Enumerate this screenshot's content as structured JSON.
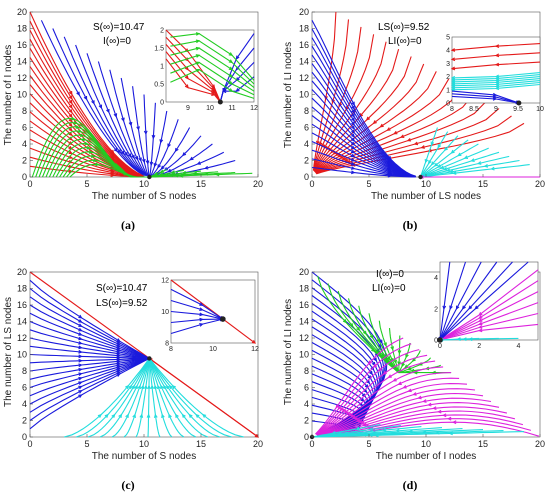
{
  "colors": {
    "red": "#e41a1a",
    "blue": "#1a1adc",
    "green": "#22cc22",
    "cyan": "#22dddd",
    "magenta": "#dd22dd",
    "endpoint": "#222222"
  },
  "chart_data": [
    {
      "id": "a",
      "panel_label": "(a)",
      "type": "line",
      "xlabel": "The number of S nodes",
      "ylabel": "The number of I nodes",
      "xlim": [
        0,
        20
      ],
      "ylim": [
        0,
        20
      ],
      "xticks": [
        0,
        5,
        10,
        15,
        20
      ],
      "yticks": [
        0,
        2,
        4,
        6,
        8,
        10,
        12,
        14,
        16,
        18,
        20
      ],
      "annotations": [
        "S(∞)=10.47",
        "I(∞)=0"
      ],
      "equilibrium": {
        "x": 10.47,
        "y": 0
      },
      "series_colors": [
        "red",
        "blue",
        "green"
      ],
      "inset": {
        "xlim": [
          8,
          12
        ],
        "ylim": [
          0,
          2
        ],
        "xticks": [
          9,
          10,
          11,
          12
        ],
        "yticks": [
          0,
          0.5,
          1,
          1.5,
          2
        ],
        "x_tick_labels": [
          "9",
          "10",
          "11",
          "12"
        ],
        "y_tick_labels": [
          "0",
          "0.5",
          "1",
          "1.5",
          "2"
        ]
      }
    },
    {
      "id": "b",
      "panel_label": "(b)",
      "type": "line",
      "xlabel": "The number of LS nodes",
      "ylabel": "The number of LI nodes",
      "xlim": [
        0,
        20
      ],
      "ylim": [
        0,
        20
      ],
      "xticks": [
        0,
        5,
        10,
        15,
        20
      ],
      "yticks": [
        0,
        2,
        4,
        6,
        8,
        10,
        12,
        14,
        16,
        18,
        20
      ],
      "annotations": [
        "LS(∞)=9.52",
        "LI(∞)=0"
      ],
      "equilibrium": {
        "x": 9.52,
        "y": 0
      },
      "series_colors": [
        "red",
        "blue",
        "cyan"
      ],
      "inset": {
        "xlim": [
          8,
          10
        ],
        "ylim": [
          0,
          5
        ],
        "xticks": [
          8,
          8.5,
          9,
          9.5,
          10
        ],
        "yticks": [
          0,
          1,
          2,
          3,
          4,
          5
        ],
        "x_tick_labels": [
          "8",
          "8.5",
          "9",
          "9.5",
          "10"
        ],
        "y_tick_labels": [
          "0",
          "1",
          "2",
          "3",
          "4",
          "5"
        ]
      }
    },
    {
      "id": "c",
      "panel_label": "(c)",
      "type": "line",
      "xlabel": "The number of S nodes",
      "ylabel": "The number of LS nodes",
      "xlim": [
        0,
        20
      ],
      "ylim": [
        0,
        20
      ],
      "xticks": [
        0,
        5,
        10,
        15,
        20
      ],
      "yticks": [
        0,
        2,
        4,
        6,
        8,
        10,
        12,
        14,
        16,
        18,
        20
      ],
      "annotations": [
        "S(∞)=10.47",
        "LS(∞)=9.52"
      ],
      "equilibrium": {
        "x": 10.47,
        "y": 9.52
      },
      "series_colors": [
        "red",
        "blue",
        "cyan"
      ],
      "inset": {
        "xlim": [
          8,
          12
        ],
        "ylim": [
          8,
          12
        ],
        "xticks": [
          8,
          10,
          12
        ],
        "yticks": [
          8,
          10,
          12
        ],
        "x_tick_labels": [
          "8",
          "10",
          "12"
        ],
        "y_tick_labels": [
          "8",
          "10",
          "12"
        ]
      }
    },
    {
      "id": "d",
      "panel_label": "(d)",
      "type": "line",
      "xlabel": "The number of I nodes",
      "ylabel": "The number of LI nodes",
      "xlim": [
        0,
        20
      ],
      "ylim": [
        0,
        20
      ],
      "xticks": [
        0,
        5,
        10,
        15,
        20
      ],
      "yticks": [
        0,
        2,
        4,
        6,
        8,
        10,
        12,
        14,
        16,
        18,
        20
      ],
      "annotations": [
        "I(∞)=0",
        "LI(∞)=0"
      ],
      "equilibrium": {
        "x": 0,
        "y": 0
      },
      "series_colors": [
        "blue",
        "green",
        "magenta",
        "cyan"
      ],
      "inset": {
        "xlim": [
          0,
          5
        ],
        "ylim": [
          0,
          5
        ],
        "xticks": [
          0,
          2,
          4
        ],
        "yticks": [
          0,
          2,
          4
        ],
        "x_tick_labels": [
          "0",
          "2",
          "4"
        ],
        "y_tick_labels": [
          "0",
          "2",
          "4"
        ]
      }
    }
  ]
}
